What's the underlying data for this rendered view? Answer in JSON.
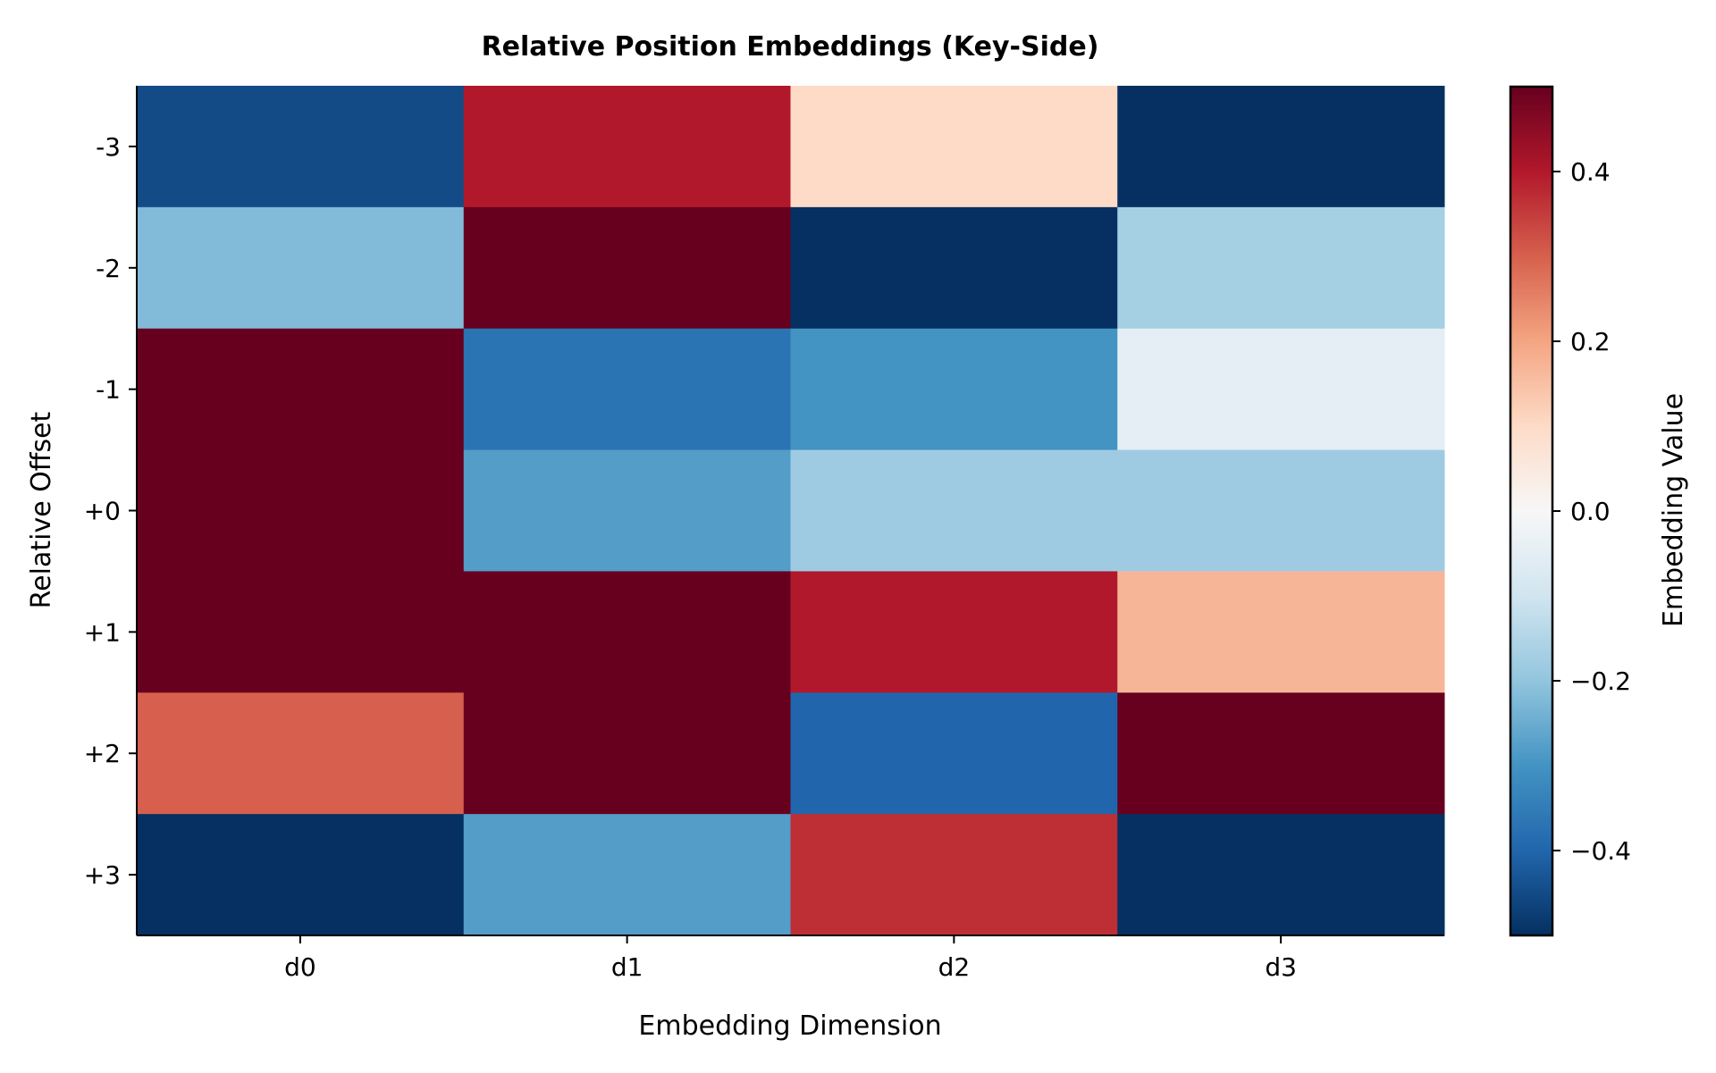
{
  "chart_data": {
    "type": "heatmap",
    "title": "Relative Position Embeddings (Key-Side)",
    "xlabel": "Embedding Dimension",
    "ylabel": "Relative Offset",
    "x_categories": [
      "d0",
      "d1",
      "d2",
      "d3"
    ],
    "y_categories": [
      "-3",
      "-2",
      "-1",
      "+0",
      "+1",
      "+2",
      "+3"
    ],
    "values": [
      [
        -0.45,
        0.4,
        0.1,
        -0.5
      ],
      [
        -0.22,
        0.5,
        -0.5,
        -0.17
      ],
      [
        0.5,
        -0.37,
        -0.3,
        -0.05
      ],
      [
        0.5,
        -0.28,
        -0.18,
        -0.18
      ],
      [
        0.5,
        0.5,
        0.4,
        0.17
      ],
      [
        0.3,
        0.5,
        -0.4,
        0.5
      ],
      [
        -0.5,
        -0.28,
        0.37,
        -0.5
      ]
    ],
    "colormap": "RdBu_r",
    "colorbar": {
      "label": "Embedding Value",
      "range": [
        -0.5,
        0.5
      ],
      "ticks": [
        0.4,
        0.2,
        0.0,
        -0.2,
        -0.4
      ],
      "tick_labels": [
        "0.4",
        "0.2",
        "0.0",
        "−0.2",
        "−0.4"
      ]
    },
    "grid": false
  }
}
